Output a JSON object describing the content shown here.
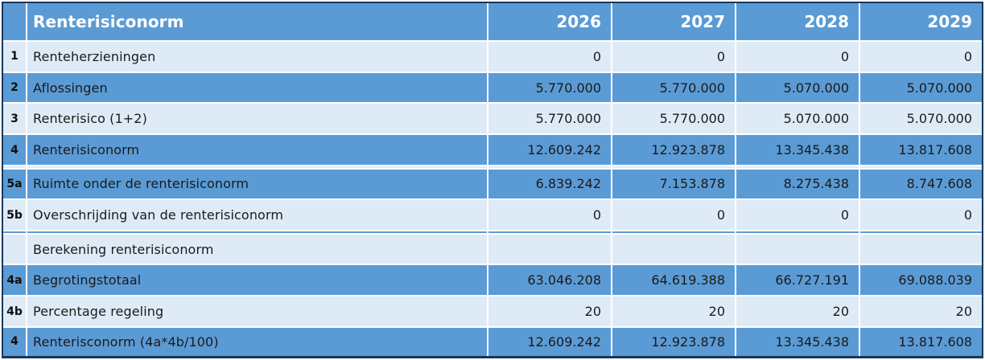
{
  "table": {
    "title": "Renterisiconorm",
    "years": [
      "2026",
      "2027",
      "2028",
      "2029"
    ],
    "rows": [
      {
        "num": "1",
        "label": "Renteherzieningen",
        "values": [
          "0",
          "0",
          "0",
          "0"
        ],
        "variant": "light"
      },
      {
        "num": "2",
        "label": "Aflossingen",
        "values": [
          "5.770.000",
          "5.770.000",
          "5.070.000",
          "5.070.000"
        ],
        "variant": "blue"
      },
      {
        "num": "3",
        "label": "Renterisico (1+2)",
        "values": [
          "5.770.000",
          "5.770.000",
          "5.070.000",
          "5.070.000"
        ],
        "variant": "light"
      },
      {
        "num": "4",
        "label": "Renterisiconorm",
        "values": [
          "12.609.242",
          "12.923.878",
          "13.345.438",
          "13.817.608"
        ],
        "variant": "blue"
      },
      {
        "num": "",
        "label": "",
        "values": [
          "",
          "",
          "",
          ""
        ],
        "variant": "light"
      },
      {
        "num": "5a",
        "label": "Ruimte onder de renterisiconorm",
        "values": [
          "6.839.242",
          "7.153.878",
          "8.275.438",
          "8.747.608"
        ],
        "variant": "blue"
      },
      {
        "num": "5b",
        "label": "Overschrijding van de renterisiconorm",
        "values": [
          "0",
          "0",
          "0",
          "0"
        ],
        "variant": "light"
      },
      {
        "num": "",
        "label": "",
        "values": [
          "",
          "",
          "",
          ""
        ],
        "variant": "blue"
      },
      {
        "num": "",
        "label": "Berekening renterisiconorm",
        "values": [
          "",
          "",
          "",
          ""
        ],
        "variant": "light"
      },
      {
        "num": "4a",
        "label": "Begrotingstotaal",
        "values": [
          "63.046.208",
          "64.619.388",
          "66.727.191",
          "69.088.039"
        ],
        "variant": "blue"
      },
      {
        "num": "4b",
        "label": "Percentage regeling",
        "values": [
          "20",
          "20",
          "20",
          "20"
        ],
        "variant": "light"
      },
      {
        "num": "4",
        "label": "Renterisconorm (4a*4b/100)",
        "values": [
          "12.609.242",
          "12.923.878",
          "13.345.438",
          "13.817.608"
        ],
        "variant": "blue"
      }
    ],
    "colors": {
      "row_blue": "#5B9BD5",
      "row_light": "#DEEBF7",
      "table_border": "#17375D",
      "header_text": "#FFFFFF",
      "body_text": "#1A1A1A"
    }
  }
}
